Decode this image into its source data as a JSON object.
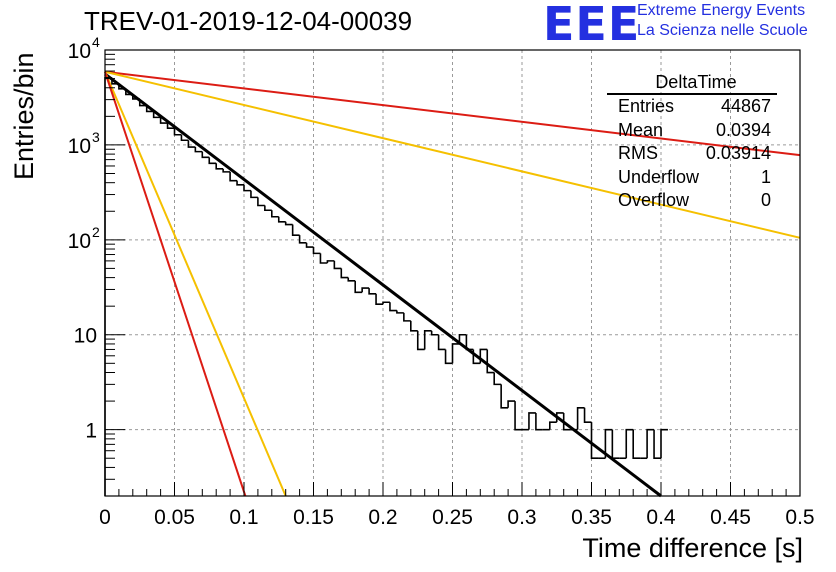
{
  "header": {
    "run_title": "TREV-01-2019-12-04-00039",
    "logo_mark": "EEE",
    "logo_line1": "Extreme Energy Events",
    "logo_line2": "La Scienza nelle Scuole"
  },
  "stats_box": {
    "title": "DeltaTime",
    "rows": [
      {
        "label": "Entries",
        "value": "44867"
      },
      {
        "label": "Mean",
        "value": "0.0394"
      },
      {
        "label": "RMS",
        "value": "0.03914"
      },
      {
        "label": "Underflow",
        "value": "1"
      },
      {
        "label": "Overflow",
        "value": "0"
      }
    ]
  },
  "chart_data": {
    "type": "histogram",
    "xlabel": "Time difference [s]",
    "ylabel": "Entries/bin",
    "xlim": [
      0,
      0.5
    ],
    "ylim": [
      0.2,
      10000
    ],
    "yscale": "log",
    "grid": true,
    "x_ticks": [
      "0",
      "0.05",
      "0.1",
      "0.15",
      "0.2",
      "0.25",
      "0.3",
      "0.35",
      "0.4",
      "0.45",
      "0.5"
    ],
    "y_ticks": [
      {
        "value": 1,
        "label": "1"
      },
      {
        "value": 10,
        "label": "10"
      },
      {
        "value": 100,
        "label": "10",
        "exp": "2"
      },
      {
        "value": 1000,
        "label": "10",
        "exp": "3"
      },
      {
        "value": 10000,
        "label": "10",
        "exp": "4"
      }
    ],
    "histogram": {
      "bin_width": 0.005,
      "color": "#000000",
      "values": [
        5100,
        4400,
        3900,
        3400,
        3050,
        2600,
        2250,
        1950,
        1700,
        1500,
        1280,
        1120,
        950,
        850,
        740,
        640,
        560,
        520,
        420,
        380,
        330,
        280,
        230,
        205,
        175,
        155,
        145,
        112,
        93,
        84,
        72,
        57,
        60,
        50,
        40,
        37,
        28,
        31,
        27,
        21,
        22,
        18,
        17,
        14,
        11,
        7,
        11,
        10,
        7,
        5,
        8,
        10,
        7,
        5,
        7,
        4,
        3,
        1.7,
        2,
        1,
        1,
        1.5,
        1,
        1,
        1.2,
        1.5,
        1,
        1,
        1.7,
        1.2,
        0.5,
        0.5,
        1,
        0.5,
        0.5,
        1,
        0.5,
        0.5,
        1,
        0.5,
        1
      ]
    },
    "fit_lines": [
      {
        "color": "#000000",
        "x": [
          0,
          0.4
        ],
        "y": [
          5600,
          0.2
        ]
      },
      {
        "color": "#dc1c14",
        "x": [
          0,
          0.5
        ],
        "y": [
          5900,
          780
        ]
      },
      {
        "color": "#f5c000",
        "x": [
          0,
          0.5
        ],
        "y": [
          5900,
          105
        ]
      },
      {
        "color": "#f5c000",
        "x": [
          0,
          0.13
        ],
        "y": [
          5900,
          0.2
        ]
      },
      {
        "color": "#dc1c14",
        "x": [
          0,
          0.101
        ],
        "y": [
          5900,
          0.2
        ]
      }
    ]
  }
}
